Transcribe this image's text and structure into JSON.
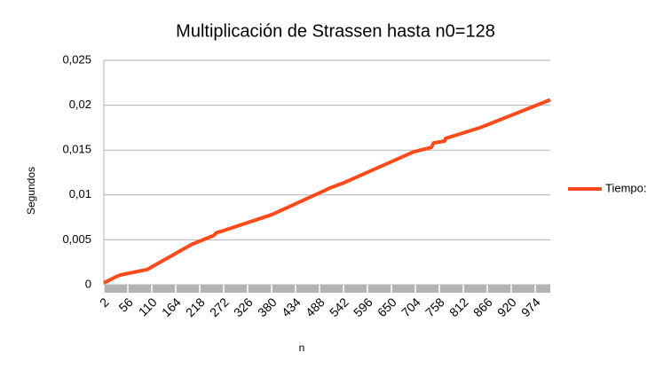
{
  "chart_data": {
    "type": "line",
    "title": "Multiplicación de Strassen hasta n0=128",
    "x_label": "n",
    "y_label": "Segundos",
    "x": [
      2,
      10,
      30,
      40,
      100,
      200,
      250,
      256,
      270,
      380,
      500,
      512,
      540,
      700,
      740,
      745,
      770,
      772,
      850,
      1008
    ],
    "series": [
      {
        "name": "Tiempo:",
        "color": "#ff4a1c",
        "values": [
          0.0002,
          0.0004,
          0.0009,
          0.0011,
          0.0017,
          0.0045,
          0.0055,
          0.0058,
          0.006,
          0.0078,
          0.0105,
          0.0108,
          0.0113,
          0.0148,
          0.0153,
          0.0158,
          0.016,
          0.0163,
          0.0175,
          0.0206
        ]
      }
    ],
    "xlim": [
      2,
      1008
    ],
    "xticks": [
      2,
      56,
      110,
      164,
      218,
      272,
      326,
      380,
      434,
      488,
      542,
      596,
      650,
      704,
      758,
      812,
      866,
      920,
      974
    ],
    "ylim": [
      0,
      0.025
    ],
    "yticks": [
      0,
      {
        "value": 0.005,
        "label": "0,005"
      },
      {
        "value": 0.01,
        "label": "0,01"
      },
      {
        "value": 0.015,
        "label": "0,015"
      },
      {
        "value": 0.02,
        "label": "0,02"
      },
      {
        "value": 0.025,
        "label": "0,025"
      }
    ],
    "grid": true,
    "legend": "right"
  }
}
